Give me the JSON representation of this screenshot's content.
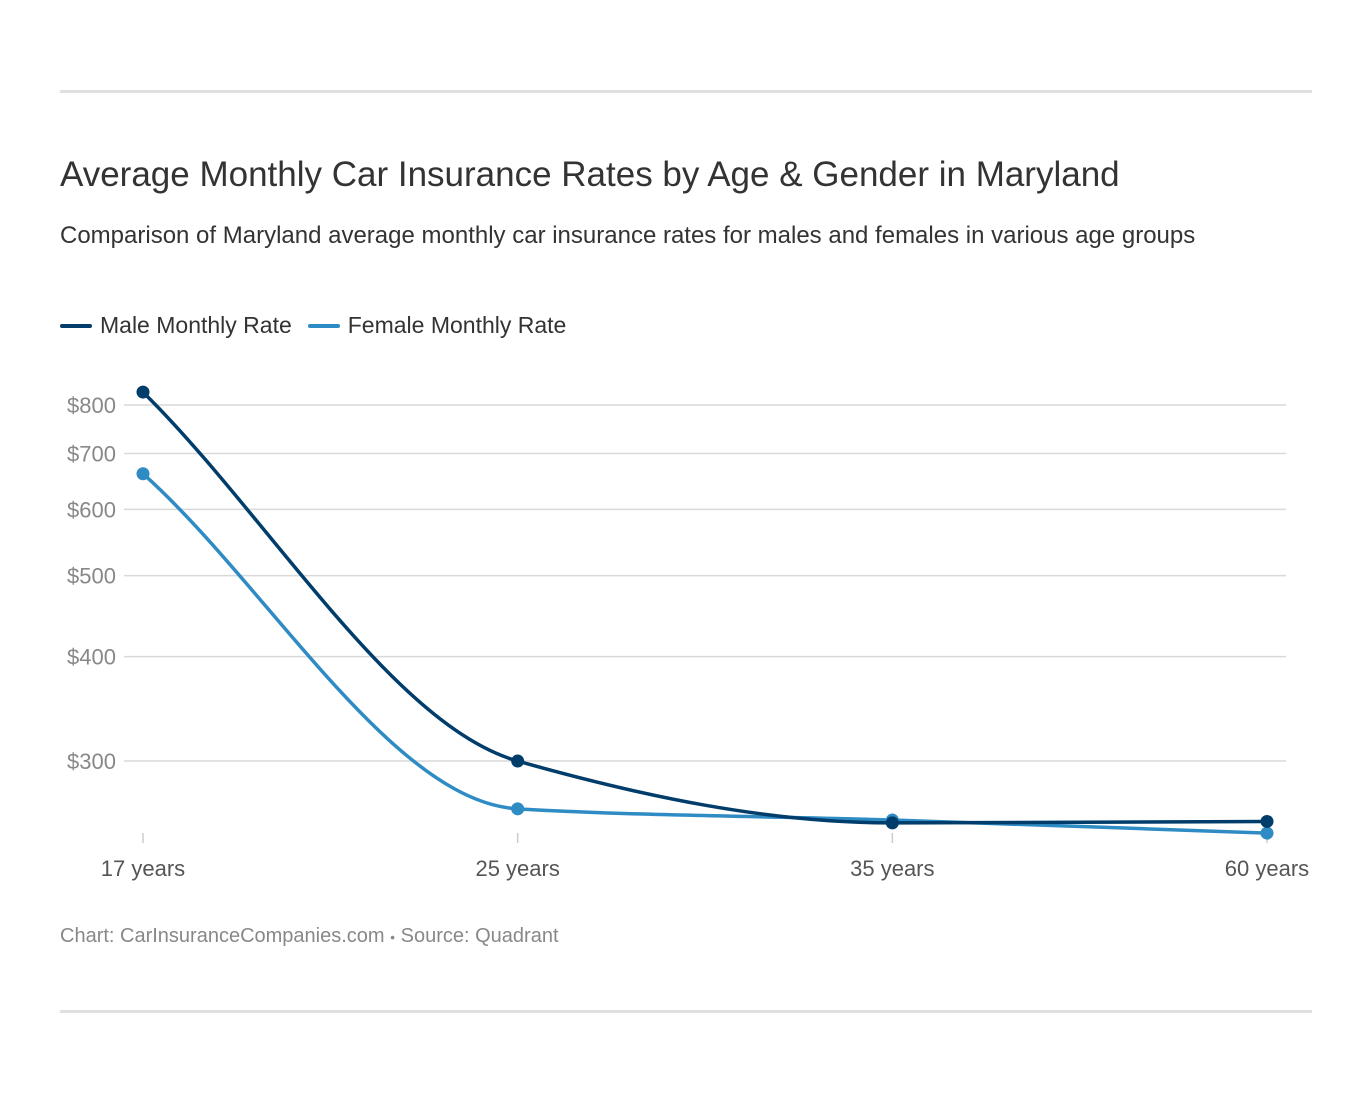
{
  "title": "Average Monthly Car Insurance Rates by Age & Gender in Maryland",
  "subtitle": "Comparison of Maryland average monthly car insurance rates for males and females in various age groups",
  "footer": {
    "chart_label": "Chart: CarInsuranceCompanies.com",
    "separator": "•",
    "source": "Source: Quadrant"
  },
  "chart_data": {
    "type": "line",
    "categories": [
      "17 years",
      "25 years",
      "35 years",
      "60 years"
    ],
    "y_scale": "log",
    "ylim": [
      240,
      830
    ],
    "y_ticks": [
      300,
      400,
      500,
      600,
      700,
      800
    ],
    "y_tick_labels": [
      "$300",
      "$400",
      "$500",
      "$600",
      "$700",
      "$800"
    ],
    "grid": true,
    "legend_placement": "top-left",
    "series": [
      {
        "name": "Male Monthly Rate",
        "color": "#003d6b",
        "values": [
          829,
          300,
          253,
          254
        ]
      },
      {
        "name": "Female Monthly Rate",
        "color": "#2e8bc4",
        "values": [
          662,
          263,
          255,
          246
        ]
      }
    ]
  }
}
